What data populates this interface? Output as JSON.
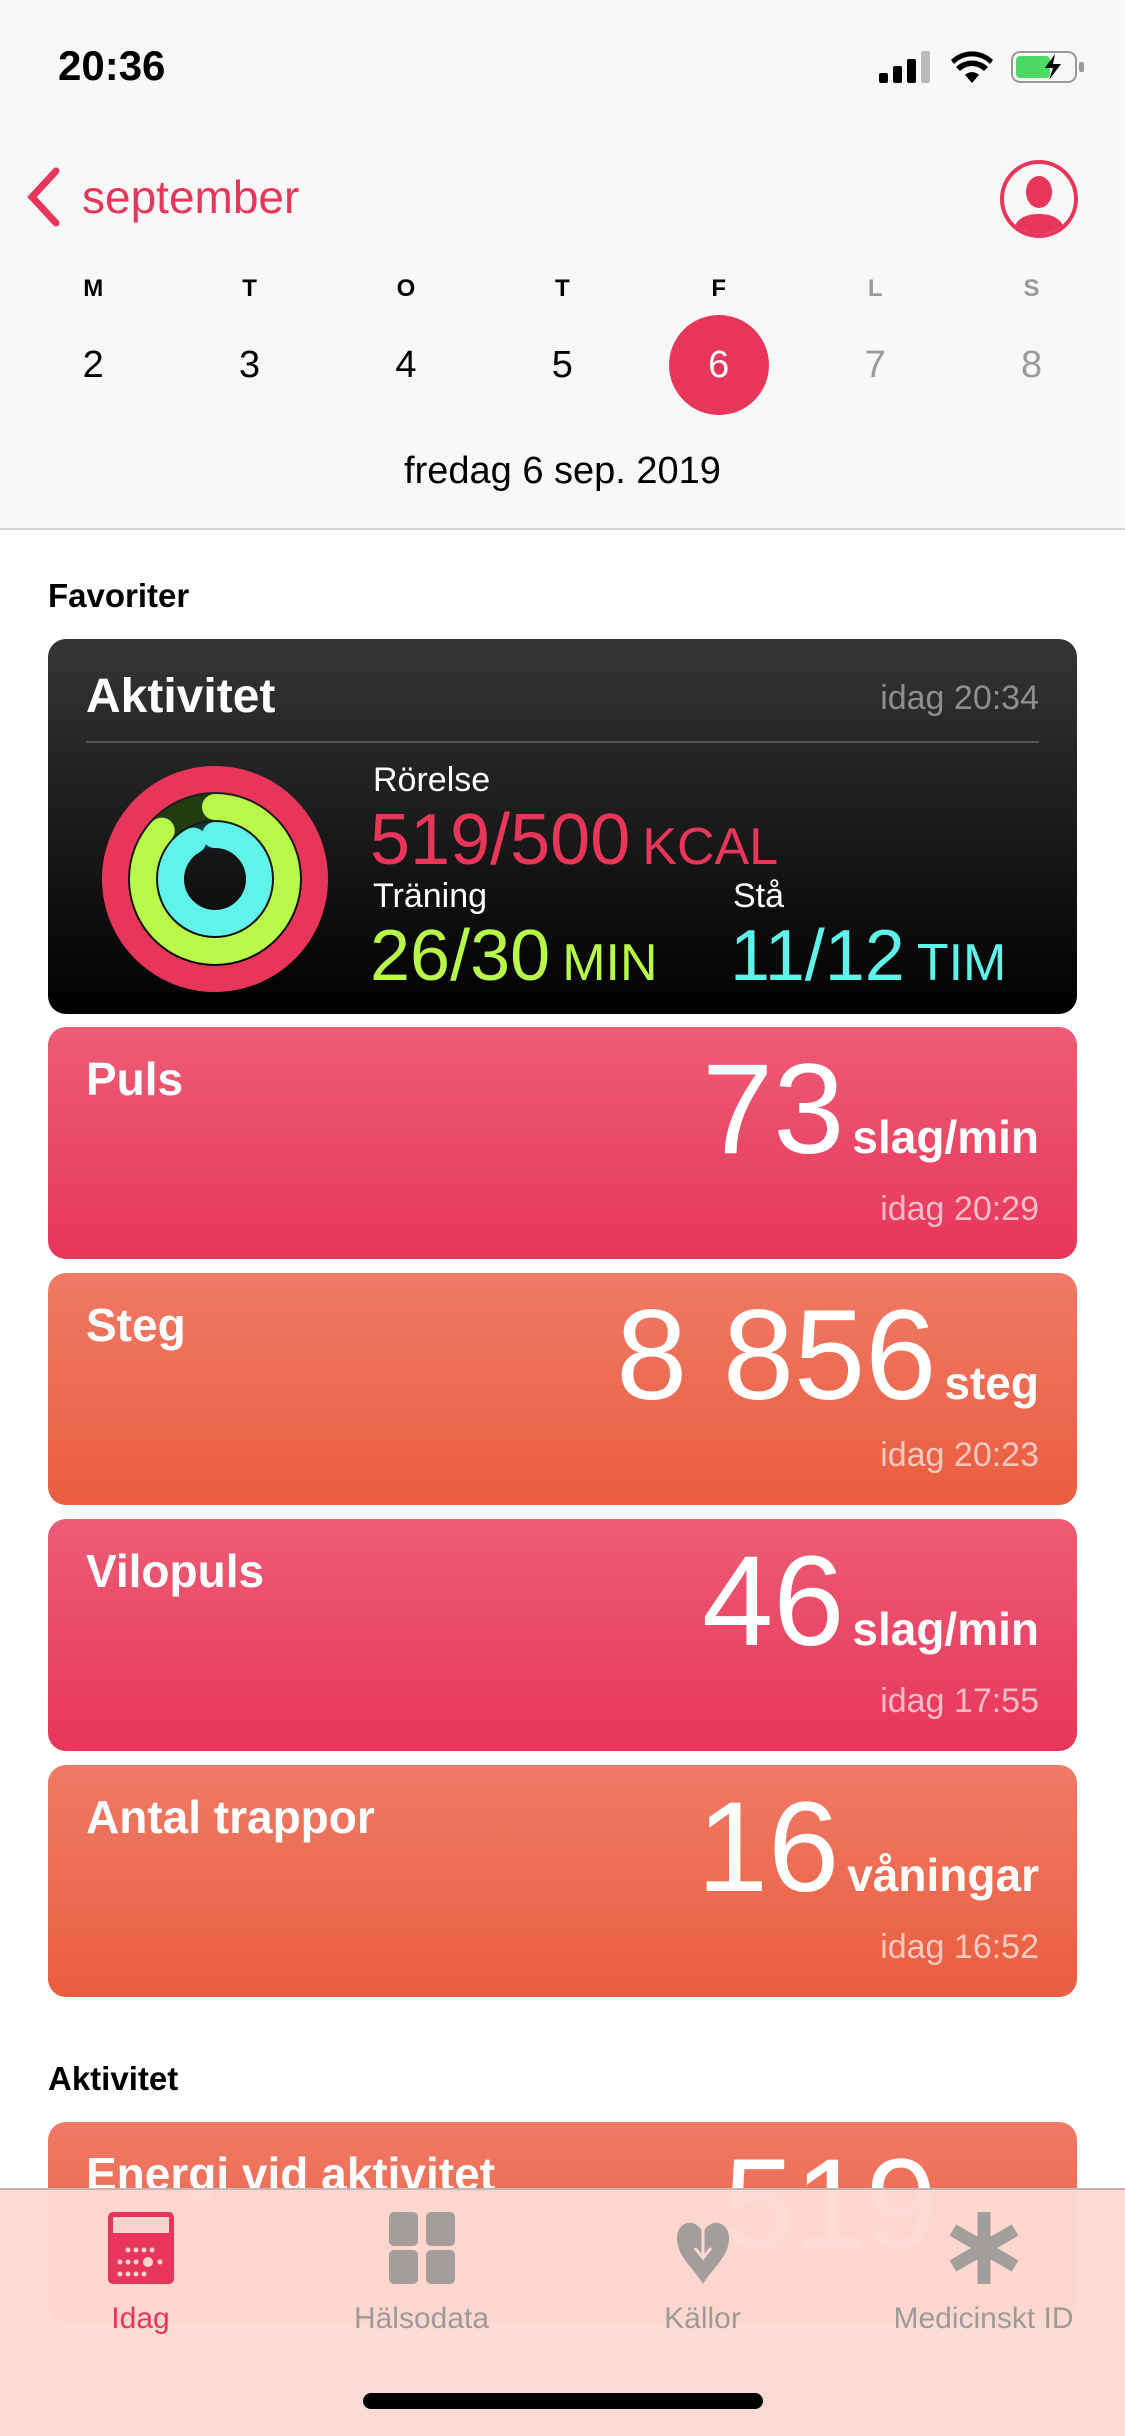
{
  "status": {
    "time": "20:36"
  },
  "header": {
    "back_label": "september",
    "days": [
      {
        "letter": "M",
        "num": "2"
      },
      {
        "letter": "T",
        "num": "3"
      },
      {
        "letter": "O",
        "num": "4"
      },
      {
        "letter": "T",
        "num": "5"
      },
      {
        "letter": "F",
        "num": "6",
        "selected": true
      },
      {
        "letter": "L",
        "num": "7"
      },
      {
        "letter": "S",
        "num": "8"
      }
    ],
    "date": "fredag 6 sep. 2019"
  },
  "favorites": {
    "title": "Favoriter",
    "activity": {
      "title": "Aktivitet",
      "time": "idag 20:34",
      "move_label": "Rörelse",
      "move_value": "519/500",
      "move_unit": "KCAL",
      "exercise_label": "Träning",
      "exercise_value": "26/30",
      "exercise_unit": "MIN",
      "stand_label": "Stå",
      "stand_value": "11/12",
      "stand_unit": "TIM",
      "move_progress": 1.038,
      "exercise_progress": 0.867,
      "stand_progress": 0.917
    },
    "metrics": [
      {
        "title": "Puls",
        "value": "73",
        "unit": "slag/min",
        "time": "idag 20:29"
      },
      {
        "title": "Steg",
        "value": "8 856",
        "unit": "steg",
        "time": "idag 20:23"
      },
      {
        "title": "Vilopuls",
        "value": "46",
        "unit": "slag/min",
        "time": "idag 17:55"
      },
      {
        "title": "Antal trappor",
        "value": "16",
        "unit": "våningar",
        "time": "idag 16:52"
      }
    ]
  },
  "activity_section": {
    "title": "Aktivitet",
    "first_card_title": "Energi vid aktivitet",
    "first_card_value": "519"
  },
  "tabs": [
    {
      "label": "Idag",
      "icon": "calendar-icon",
      "active": true
    },
    {
      "label": "Hälsodata",
      "icon": "grid-icon"
    },
    {
      "label": "Källor",
      "icon": "heart-download-icon"
    },
    {
      "label": "Medicinskt ID",
      "icon": "asterisk-icon"
    }
  ],
  "colors": {
    "accent": "#e8365a",
    "move": "#e8365a",
    "exercise": "#b8f94a",
    "stand": "#5ff3ea"
  }
}
